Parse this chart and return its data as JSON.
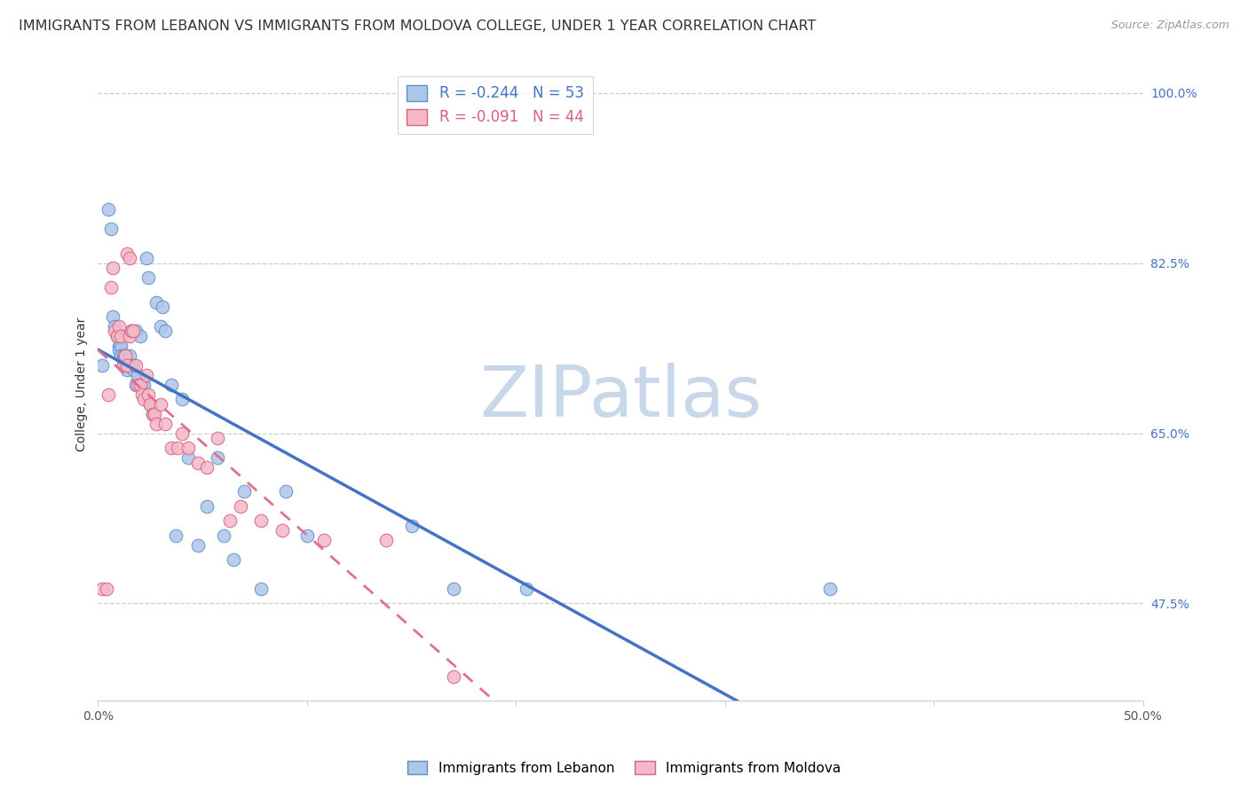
{
  "title": "IMMIGRANTS FROM LEBANON VS IMMIGRANTS FROM MOLDOVA COLLEGE, UNDER 1 YEAR CORRELATION CHART",
  "source": "Source: ZipAtlas.com",
  "ylabel": "College, Under 1 year",
  "xlim": [
    0.0,
    0.5
  ],
  "ylim": [
    0.375,
    1.025
  ],
  "lebanon_R": -0.244,
  "lebanon_N": 53,
  "moldova_R": -0.091,
  "moldova_N": 44,
  "blue_color": "#aec6e8",
  "pink_color": "#f4b8c8",
  "blue_edge_color": "#5b8fcc",
  "pink_edge_color": "#d96080",
  "blue_line_color": "#4472c4",
  "pink_line_color": "#e07090",
  "watermark": "ZIPatlas",
  "watermark_color": "#c8d8ea",
  "legend_label_blue": "Immigrants from Lebanon",
  "legend_label_pink": "Immigrants from Moldova",
  "lebanon_x": [
    0.002,
    0.005,
    0.006,
    0.007,
    0.008,
    0.009,
    0.01,
    0.01,
    0.011,
    0.011,
    0.012,
    0.012,
    0.013,
    0.013,
    0.014,
    0.014,
    0.015,
    0.015,
    0.016,
    0.016,
    0.017,
    0.017,
    0.018,
    0.018,
    0.019,
    0.02,
    0.021,
    0.022,
    0.023,
    0.024,
    0.025,
    0.026,
    0.028,
    0.03,
    0.031,
    0.032,
    0.035,
    0.037,
    0.04,
    0.043,
    0.048,
    0.052,
    0.057,
    0.06,
    0.065,
    0.07,
    0.078,
    0.09,
    0.1,
    0.15,
    0.17,
    0.205,
    0.35
  ],
  "lebanon_y": [
    0.72,
    0.88,
    0.86,
    0.77,
    0.76,
    0.75,
    0.74,
    0.735,
    0.74,
    0.73,
    0.73,
    0.725,
    0.73,
    0.72,
    0.72,
    0.715,
    0.73,
    0.72,
    0.755,
    0.72,
    0.72,
    0.715,
    0.755,
    0.7,
    0.71,
    0.75,
    0.7,
    0.7,
    0.83,
    0.81,
    0.68,
    0.67,
    0.785,
    0.76,
    0.78,
    0.755,
    0.7,
    0.545,
    0.685,
    0.625,
    0.535,
    0.575,
    0.625,
    0.545,
    0.52,
    0.59,
    0.49,
    0.59,
    0.545,
    0.555,
    0.49,
    0.49,
    0.49
  ],
  "moldova_x": [
    0.002,
    0.004,
    0.005,
    0.006,
    0.007,
    0.008,
    0.009,
    0.01,
    0.011,
    0.012,
    0.013,
    0.014,
    0.014,
    0.015,
    0.015,
    0.016,
    0.017,
    0.018,
    0.019,
    0.02,
    0.021,
    0.022,
    0.023,
    0.024,
    0.025,
    0.026,
    0.027,
    0.028,
    0.03,
    0.032,
    0.035,
    0.038,
    0.04,
    0.043,
    0.048,
    0.052,
    0.057,
    0.063,
    0.068,
    0.078,
    0.088,
    0.108,
    0.138,
    0.17
  ],
  "moldova_y": [
    0.49,
    0.49,
    0.69,
    0.8,
    0.82,
    0.755,
    0.75,
    0.76,
    0.75,
    0.72,
    0.73,
    0.72,
    0.835,
    0.83,
    0.75,
    0.755,
    0.755,
    0.72,
    0.7,
    0.7,
    0.69,
    0.685,
    0.71,
    0.69,
    0.68,
    0.67,
    0.67,
    0.66,
    0.68,
    0.66,
    0.635,
    0.635,
    0.65,
    0.635,
    0.62,
    0.615,
    0.645,
    0.56,
    0.575,
    0.56,
    0.55,
    0.54,
    0.54,
    0.4
  ],
  "ytick_positions": [
    0.475,
    0.65,
    0.825,
    1.0
  ],
  "ytick_labels": [
    "47.5%",
    "65.0%",
    "82.5%",
    "100.0%"
  ],
  "xtick_positions": [
    0.0,
    0.1,
    0.2,
    0.3,
    0.4,
    0.5
  ],
  "xtick_labels": [
    "0.0%",
    "",
    "",
    "",
    "",
    "50.0%"
  ],
  "title_fontsize": 11.5,
  "axis_fontsize": 10,
  "tick_fontsize": 10,
  "figsize": [
    14.06,
    8.92
  ],
  "dpi": 100
}
